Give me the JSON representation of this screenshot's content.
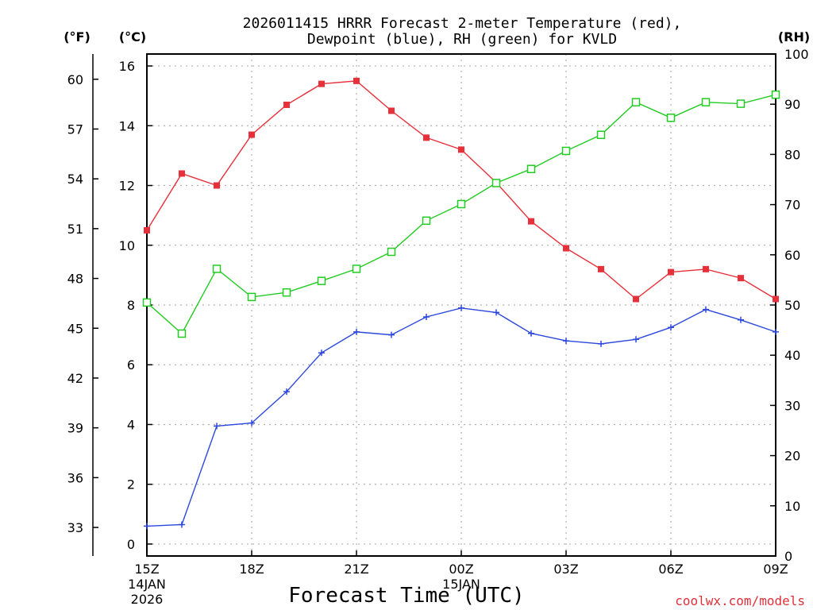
{
  "chart_data": {
    "type": "line",
    "title_line1": "2026011415 HRRR Forecast 2-meter Temperature (red),",
    "title_line2": "Dewpoint (blue), RH (green) for KVLD",
    "unit_f": "(°F)",
    "unit_c": "(°C)",
    "unit_rh": "(RH)",
    "xlabel": "Forecast Time (UTC)",
    "watermark": "coolwx.com/models",
    "x_ticks": [
      {
        "label": "15Z",
        "hour": 0,
        "sub1": "14JAN",
        "sub2": "2026"
      },
      {
        "label": "18Z",
        "hour": 3
      },
      {
        "label": "21Z",
        "hour": 6
      },
      {
        "label": "00Z",
        "hour": 9,
        "sub1": "15JAN"
      },
      {
        "label": "03Z",
        "hour": 12
      },
      {
        "label": "06Z",
        "hour": 15
      },
      {
        "label": "09Z",
        "hour": 18
      }
    ],
    "y_c_ticks": [
      "0",
      "2",
      "4",
      "6",
      "8",
      "10",
      "12",
      "14",
      "16"
    ],
    "y_f_ticks": [
      "33",
      "36",
      "39",
      "42",
      "45",
      "48",
      "51",
      "54",
      "57",
      "60"
    ],
    "y_rh_ticks": [
      "0",
      "10",
      "20",
      "30",
      "40",
      "50",
      "60",
      "70",
      "80",
      "90",
      "100"
    ],
    "xlim": [
      0,
      18
    ],
    "ylim_c": [
      -0.4,
      16.4
    ],
    "ylim_rh": [
      0,
      100
    ],
    "series": [
      {
        "name": "Temperature (°C)",
        "color": "#e8303a",
        "marker": "filled-square",
        "values": [
          10.5,
          12.4,
          12.0,
          13.7,
          14.7,
          15.4,
          15.5,
          14.5,
          13.6,
          13.2,
          12.1,
          10.8,
          9.9,
          9.2,
          8.2,
          9.1,
          9.2,
          8.9,
          8.2
        ]
      },
      {
        "name": "Dewpoint (°C)",
        "color": "#2c48dc",
        "marker": "plus",
        "values": [
          0.6,
          0.65,
          3.95,
          4.05,
          5.1,
          6.4,
          7.1,
          7.0,
          7.6,
          7.9,
          7.75,
          7.05,
          6.8,
          6.7,
          6.85,
          7.25,
          7.85,
          7.5,
          7.1
        ]
      },
      {
        "name": "RH (%)",
        "color": "#22cc22",
        "marker": "open-square",
        "values": [
          50.5,
          44.3,
          57.2,
          51.6,
          52.5,
          54.8,
          57.2,
          60.6,
          66.8,
          70.1,
          74.3,
          77.1,
          80.7,
          83.9,
          90.4,
          87.3,
          90.4,
          90.1,
          91.9
        ]
      }
    ]
  }
}
